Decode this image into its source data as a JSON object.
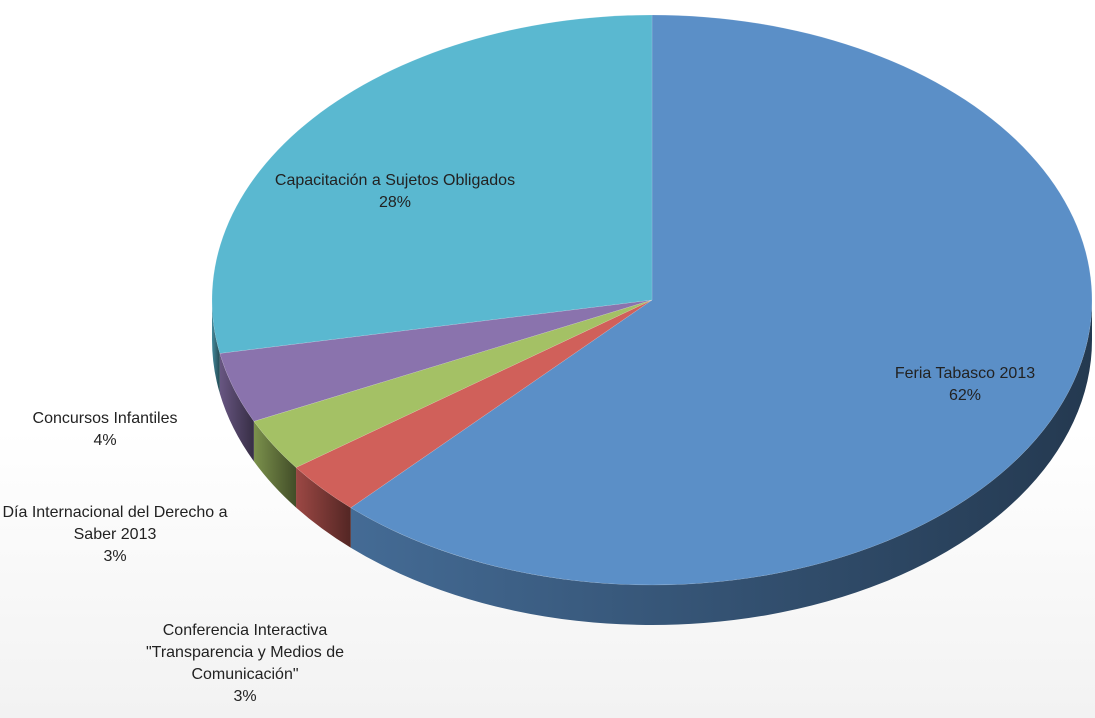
{
  "chart_data": {
    "type": "pie",
    "categories": [
      "Feria Tabasco 2013",
      "Conferencia Interactiva \"Transparencia y Medios de Comunicación\"",
      "Día Internacional del Derecho a Saber 2013",
      "Concursos Infantiles",
      "Capacitación a Sujetos Obligados"
    ],
    "values": [
      62,
      3,
      3,
      4,
      28
    ],
    "value_labels": [
      "62%",
      "3%",
      "3%",
      "4%",
      "28%"
    ],
    "colors": [
      "#5b8fc7",
      "#d0605a",
      "#a4c165",
      "#8a73ad",
      "#5ab8d0"
    ]
  }
}
